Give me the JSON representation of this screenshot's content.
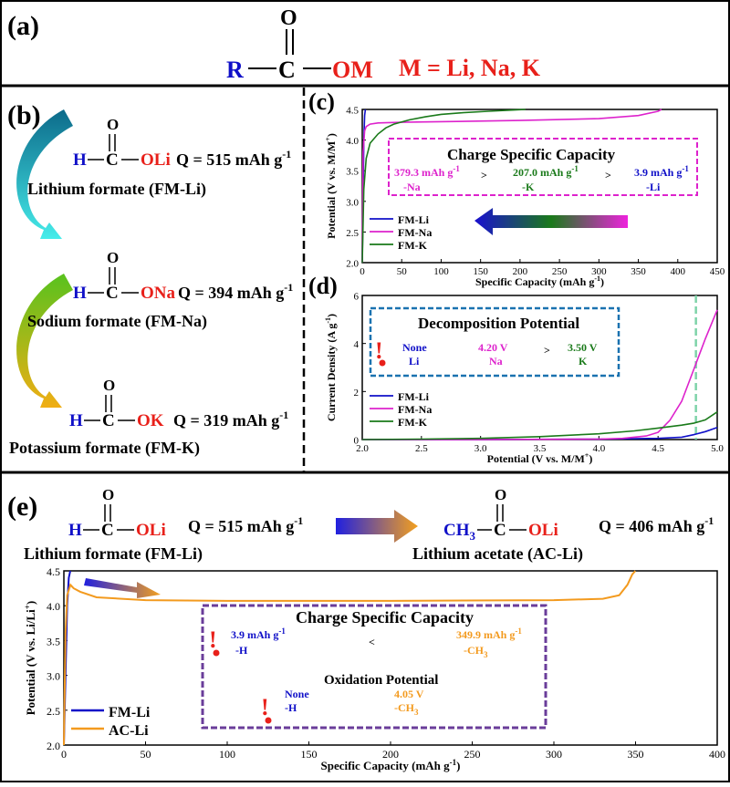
{
  "panel_a": {
    "label": "(a)",
    "formula": {
      "o_atom": "O",
      "r": "R",
      "c": "C",
      "om": "OM"
    },
    "caption": "M = Li, Na, K"
  },
  "panel_b": {
    "label": "(b)",
    "compounds": [
      {
        "h": "H",
        "c": "C",
        "o": "O",
        "ion": "OLi",
        "capacity": "Q = 515 mAh g",
        "sup": "-1",
        "name": "Lithium formate (FM-Li)"
      },
      {
        "h": "H",
        "c": "C",
        "o": "O",
        "ion": "ONa",
        "capacity": "Q = 394 mAh g",
        "sup": "-1",
        "name": "Sodium formate (FM-Na)"
      },
      {
        "h": "H",
        "c": "C",
        "o": "O",
        "ion": "OK",
        "capacity": "Q = 319 mAh g",
        "sup": "-1",
        "name": "Potassium formate (FM-K)"
      }
    ]
  },
  "panel_e_header": {
    "label": "(e)",
    "left": {
      "h": "H",
      "c": "C",
      "o": "O",
      "ion": "OLi",
      "capacity": "Q = 515 mAh g",
      "sup": "-1",
      "name": "Lithium formate (FM-Li)"
    },
    "right": {
      "ch3": "CH",
      "sub3": "3",
      "c": "C",
      "o": "O",
      "ion": "OLi",
      "capacity": "Q = 406 mAh g",
      "sup": "-1",
      "name": "Lithium acetate (AC-Li)"
    }
  },
  "colors": {
    "li": "#1010c8",
    "na": "#dd22cc",
    "k": "#1a7a1a",
    "red": "#e8201a",
    "ac": "#f39a1e",
    "blue_text": "#1010c8",
    "teal": "#2a8da0",
    "purple": "#6a3d9a"
  },
  "chart_data": [
    {
      "id": "c",
      "label": "(c)",
      "type": "line",
      "xlabel": "Specific Capacity (mAh g",
      "xlabel_sup": "-1",
      "ylabel": "Potential (V vs. M/M",
      "ylabel_sup": "+",
      "xlim": [
        0,
        450
      ],
      "ylim": [
        2.0,
        4.5
      ],
      "xticks": [
        0,
        50,
        100,
        150,
        200,
        250,
        300,
        350,
        400,
        450
      ],
      "yticks": [
        2.0,
        2.5,
        3.0,
        3.5,
        4.0,
        4.5
      ],
      "legend": [
        "FM-Li",
        "FM-Na",
        "FM-K"
      ],
      "series": [
        {
          "name": "FM-Li",
          "x": [
            0,
            1,
            2,
            3,
            3.9
          ],
          "y": [
            2.0,
            3.0,
            4.0,
            4.4,
            4.5
          ]
        },
        {
          "name": "FM-Na",
          "x": [
            0,
            1,
            3,
            5,
            10,
            20,
            50,
            100,
            200,
            300,
            350,
            375,
            379.3
          ],
          "y": [
            2.0,
            3.8,
            4.15,
            4.22,
            4.26,
            4.28,
            4.29,
            4.3,
            4.32,
            4.35,
            4.4,
            4.47,
            4.5
          ]
        },
        {
          "name": "FM-K",
          "x": [
            0,
            2,
            5,
            10,
            20,
            30,
            40,
            60,
            80,
            100,
            130,
            160,
            190,
            207
          ],
          "y": [
            2.0,
            3.2,
            3.7,
            3.95,
            4.1,
            4.2,
            4.26,
            4.33,
            4.38,
            4.42,
            4.45,
            4.47,
            4.49,
            4.5
          ]
        }
      ],
      "annotation": {
        "title": "Charge Specific Capacity",
        "items": [
          {
            "value": "379.3 mAh g",
            "sup": "-1",
            "tag": "-Na"
          },
          {
            "value": "207.0 mAh g",
            "sup": "-1",
            "tag": "-K"
          },
          {
            "value": "3.9 mAh g",
            "sup": "-1",
            "tag": "-Li"
          }
        ],
        "separators": [
          ">",
          ">"
        ]
      }
    },
    {
      "id": "d",
      "label": "(d)",
      "type": "line",
      "xlabel": "Potential (V vs. M/M",
      "xlabel_sup": "+",
      "ylabel": "Current Density (A g",
      "ylabel_sup": "-1",
      "xlim": [
        2.0,
        5.0
      ],
      "ylim": [
        0,
        6
      ],
      "xticks": [
        2.0,
        2.5,
        3.0,
        3.5,
        4.0,
        4.5,
        5.0
      ],
      "yticks": [
        0,
        2,
        4,
        6
      ],
      "legend": [
        "FM-Li",
        "FM-Na",
        "FM-K"
      ],
      "marker_line_x": 4.82,
      "series": [
        {
          "name": "FM-Li",
          "x": [
            2.0,
            3.0,
            4.0,
            4.5,
            4.7,
            4.8,
            4.9,
            5.0
          ],
          "y": [
            0,
            0,
            0.02,
            0.05,
            0.1,
            0.2,
            0.33,
            0.5
          ]
        },
        {
          "name": "FM-Na",
          "x": [
            2.0,
            3.0,
            4.0,
            4.2,
            4.4,
            4.5,
            4.6,
            4.7,
            4.8,
            4.9,
            5.0
          ],
          "y": [
            0,
            0,
            0.02,
            0.05,
            0.15,
            0.3,
            0.8,
            1.6,
            2.9,
            4.2,
            5.4
          ]
        },
        {
          "name": "FM-K",
          "x": [
            2.0,
            2.5,
            3.0,
            3.5,
            4.0,
            4.3,
            4.5,
            4.7,
            4.8,
            4.9,
            5.0
          ],
          "y": [
            0,
            0.02,
            0.05,
            0.12,
            0.24,
            0.36,
            0.48,
            0.6,
            0.68,
            0.82,
            1.15
          ]
        }
      ],
      "annotation": {
        "title": "Decomposition Potential",
        "items": [
          {
            "value": "None",
            "tag": "Li"
          },
          {
            "value": "4.20 V",
            "tag": "Na"
          },
          {
            "value": "3.50 V",
            "tag": "K"
          }
        ],
        "separator": ">",
        "exclaim": "!"
      }
    },
    {
      "id": "e",
      "label": "(e)",
      "type": "line",
      "xlabel": "Specific Capacity (mAh g",
      "xlabel_sup": "-1",
      "ylabel": "Potential (V vs. Li/Li",
      "ylabel_sup": "+",
      "xlim": [
        0,
        400
      ],
      "ylim": [
        2.0,
        4.5
      ],
      "xticks": [
        0,
        50,
        100,
        150,
        200,
        250,
        300,
        350,
        400
      ],
      "yticks": [
        2.0,
        2.5,
        3.0,
        3.5,
        4.0,
        4.5
      ],
      "legend": [
        "FM-Li",
        "AC-Li"
      ],
      "series": [
        {
          "name": "FM-Li",
          "x": [
            0,
            1,
            2,
            3,
            3.9
          ],
          "y": [
            2.0,
            3.0,
            4.0,
            4.4,
            4.5
          ]
        },
        {
          "name": "AC-Li",
          "x": [
            0,
            1,
            2,
            4,
            6,
            10,
            20,
            50,
            100,
            200,
            300,
            330,
            340,
            345,
            348,
            349.9
          ],
          "y": [
            2.0,
            3.6,
            4.15,
            4.3,
            4.25,
            4.2,
            4.12,
            4.08,
            4.07,
            4.07,
            4.08,
            4.1,
            4.15,
            4.3,
            4.45,
            4.5
          ]
        }
      ],
      "annotation": {
        "title1": "Charge Specific Capacity",
        "cap_h": {
          "value": "3.9 mAh g",
          "sup": "-1",
          "tag": "-H"
        },
        "cap_ch3": {
          "value": "349.9 mAh g",
          "sup": "-1",
          "tag": "-CH",
          "sub": "3"
        },
        "cap_sep": "<",
        "title2": "Oxidation Potential",
        "ox_h": {
          "value": "None",
          "tag": "-H"
        },
        "ox_ch3": {
          "value": "4.05 V",
          "tag": "-CH",
          "sub": "3"
        },
        "exclaim": "!"
      }
    }
  ]
}
